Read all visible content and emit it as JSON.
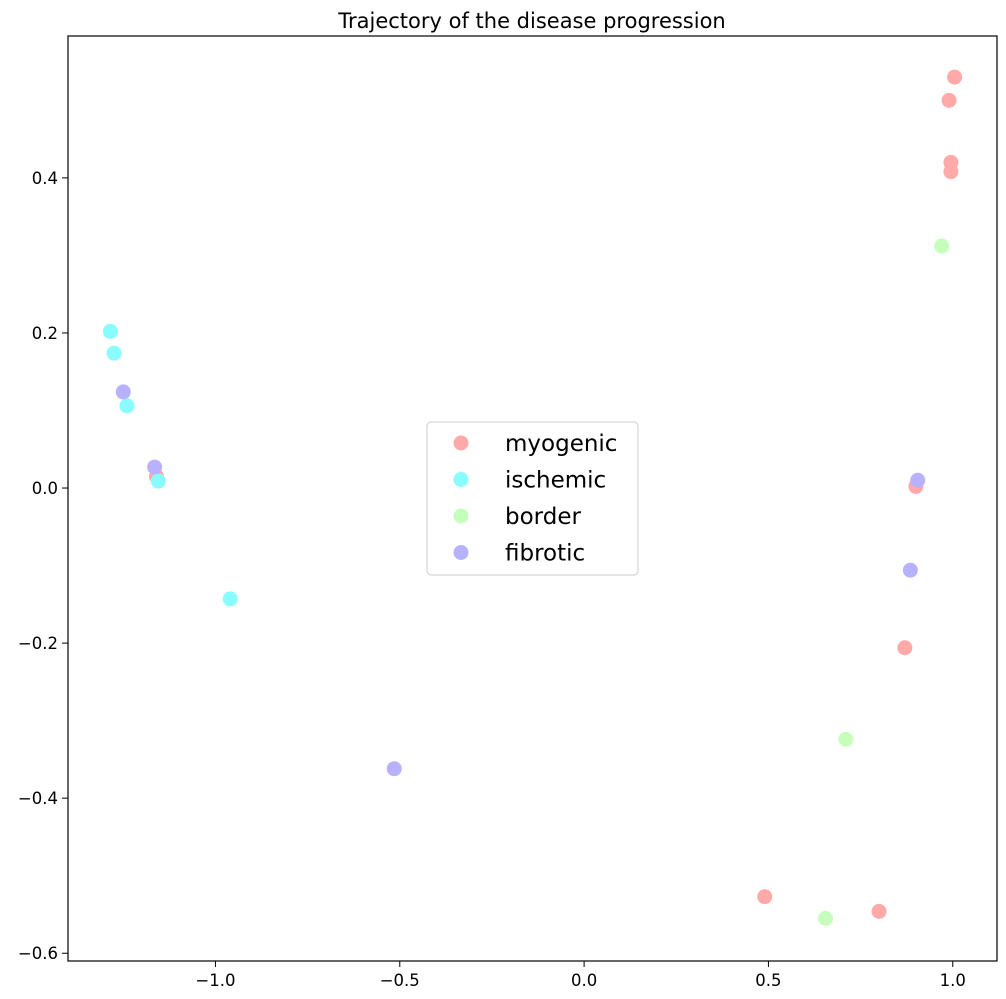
{
  "chart_data": {
    "type": "scatter",
    "title": "Trajectory of the disease progression",
    "xlabel": "",
    "ylabel": "",
    "xlim": [
      -1.4,
      1.12
    ],
    "ylim": [
      -0.61,
      0.583
    ],
    "xticks": [
      -1.0,
      -0.5,
      0.0,
      0.5,
      1.0
    ],
    "xtick_labels": [
      "−1.0",
      "−0.5",
      "0.0",
      "0.5",
      "1.0"
    ],
    "yticks": [
      -0.6,
      -0.4,
      -0.2,
      0.0,
      0.2,
      0.4
    ],
    "ytick_labels": [
      "−0.6",
      "−0.4",
      "−0.2",
      "0.0",
      "0.2",
      "0.4"
    ],
    "grid": false,
    "legend": "center",
    "series": [
      {
        "name": "myogenic",
        "color": "#ffaaa8",
        "points": [
          [
            1.005,
            0.53
          ],
          [
            0.99,
            0.5
          ],
          [
            0.995,
            0.42
          ],
          [
            0.995,
            0.408
          ],
          [
            0.9,
            0.002
          ],
          [
            0.87,
            -0.206
          ],
          [
            0.8,
            -0.546
          ],
          [
            0.49,
            -0.527
          ],
          [
            -1.16,
            0.015
          ]
        ]
      },
      {
        "name": "ischemic",
        "color": "#88fcff",
        "points": [
          [
            -1.285,
            0.202
          ],
          [
            -1.275,
            0.174
          ],
          [
            -1.24,
            0.106
          ],
          [
            -1.155,
            0.009
          ],
          [
            -0.96,
            -0.143
          ]
        ]
      },
      {
        "name": "border",
        "color": "#c6ffbb",
        "points": [
          [
            0.97,
            0.312
          ],
          [
            0.71,
            -0.324
          ],
          [
            0.655,
            -0.555
          ]
        ]
      },
      {
        "name": "fibrotic",
        "color": "#b8b1fc",
        "points": [
          [
            -1.25,
            0.124
          ],
          [
            -1.165,
            0.027
          ],
          [
            -0.515,
            -0.362
          ],
          [
            0.905,
            0.01
          ],
          [
            0.885,
            -0.106
          ]
        ]
      }
    ]
  }
}
